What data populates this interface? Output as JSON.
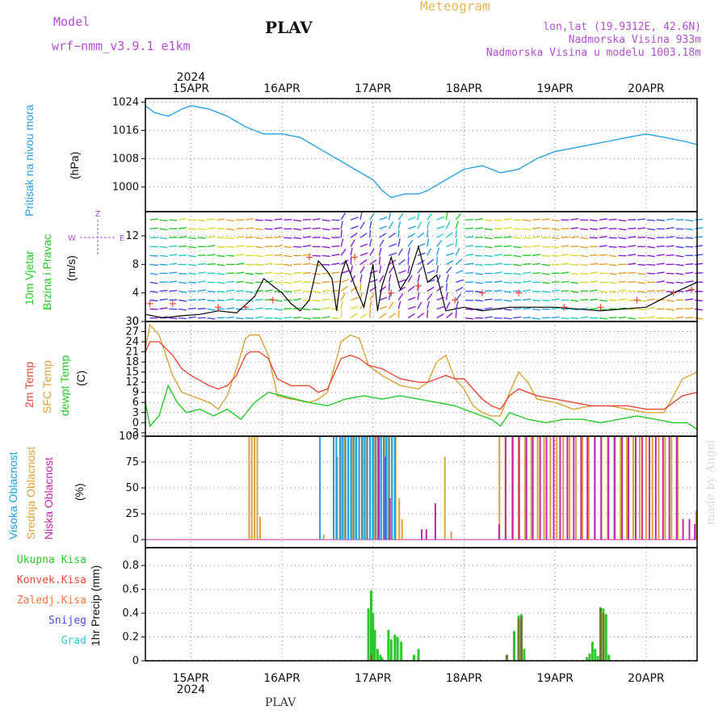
{
  "header": {
    "model_label": "Model",
    "model_name": "wrf−nmm_v3.9.1  e1km",
    "station": "PLAV",
    "title": "Meteogram",
    "lonlat": "lon,lat (19.9312E, 42.6N)",
    "elevation": "Nadmorska Visina 933m",
    "model_elevation": "Nadmorska Visina u modelu 1003.18m"
  },
  "footer": {
    "station": "PLAV",
    "credit": "made by Angel"
  },
  "colors": {
    "pressure": "#2aa0e0",
    "temp": "#e84a3a",
    "sfc_temp": "#d9a23a",
    "dewpt": "#27c727",
    "wind_speed": "#000000",
    "gust": "#e84a3a",
    "high_cloud": "#1f9fe0",
    "mid_cloud": "#d9a23a",
    "low_cloud": "#c228a8",
    "precip_total": "#2ec72e",
    "precip_conv": "#e84a3a",
    "grid": "#888888"
  },
  "chart_data": [
    {
      "type": "line",
      "panel": "pressure",
      "ylabel_title": "Pritisak na nivou mora",
      "ylabel_unit": "(hPa)",
      "xlabel_year": "2024",
      "x_ticks": [
        "15APR",
        "16APR",
        "17APR",
        "18APR",
        "19APR",
        "20APR"
      ],
      "x_unit": "days since 15APR00",
      "ylim": [
        993,
        1025
      ],
      "y_ticks": [
        "1024",
        "1016",
        "1008",
        "1000"
      ],
      "x": [
        -0.5,
        -0.4,
        -0.25,
        -0.1,
        0.0,
        0.2,
        0.4,
        0.6,
        0.8,
        1.0,
        1.2,
        1.4,
        1.6,
        1.8,
        2.0,
        2.1,
        2.2,
        2.35,
        2.5,
        2.6,
        2.8,
        3.0,
        3.2,
        3.4,
        3.6,
        3.8,
        4.0,
        4.2,
        4.4,
        4.6,
        4.8,
        5.0,
        5.2,
        5.4,
        5.56
      ],
      "values": [
        1023,
        1021,
        1020,
        1022,
        1023,
        1022,
        1020,
        1017,
        1015,
        1015,
        1014,
        1011,
        1008,
        1005,
        1002,
        999,
        997,
        998,
        998,
        999,
        1002,
        1005,
        1006,
        1004,
        1005,
        1008,
        1010,
        1011,
        1012,
        1013,
        1014,
        1015,
        1014,
        1013,
        1012
      ]
    },
    {
      "type": "line",
      "panel": "wind",
      "ylabel_title": "10m Vjetar",
      "ylabel_sub": "Brzina i Pravac",
      "ylabel_unit": "(m/s)",
      "compass_labels": [
        "N",
        "E",
        "W",
        "Z"
      ],
      "ylim": [
        0,
        15.4
      ],
      "y_ticks": [
        "0",
        "4",
        "8",
        "12"
      ],
      "x": [
        -0.5,
        -0.3,
        -0.1,
        0.1,
        0.3,
        0.5,
        0.7,
        0.8,
        1.0,
        1.1,
        1.2,
        1.3,
        1.4,
        1.5,
        1.55,
        1.6,
        1.65,
        1.7,
        1.8,
        1.9,
        2.0,
        2.05,
        2.1,
        2.2,
        2.3,
        2.4,
        2.5,
        2.6,
        2.7,
        2.8,
        3.0,
        3.2,
        3.5,
        4.0,
        4.5,
        5.0,
        5.3,
        5.56
      ],
      "values": [
        1,
        0.5,
        0.8,
        1,
        1.5,
        1.2,
        3.5,
        6,
        4,
        2.5,
        1.5,
        3,
        8.5,
        7,
        6,
        1.5,
        6.5,
        8.5,
        5,
        2,
        8,
        1.5,
        5,
        9,
        4.5,
        6.5,
        10.5,
        5.5,
        6.5,
        1.5,
        2,
        1.5,
        2,
        2,
        1.5,
        2,
        4,
        5.5
      ],
      "gust_x": [
        -0.45,
        -0.2,
        0.3,
        0.6,
        0.9,
        1.3,
        1.8,
        2.2,
        2.5,
        2.9,
        3.2,
        3.6,
        4.1,
        4.5,
        4.9,
        5.3,
        5.5
      ],
      "gust_values": [
        2.5,
        2.5,
        2,
        2,
        3,
        9,
        9,
        4,
        5,
        3,
        4,
        4,
        2,
        2,
        3,
        4,
        4.5
      ]
    },
    {
      "type": "line",
      "panel": "temperature",
      "ylabel_2m": "2m Temp",
      "ylabel_sfc": "SFC Temp",
      "ylabel_dew": "dewpt Temp",
      "ylabel_unit": "(C)",
      "ylim": [
        -4,
        30
      ],
      "y_ticks": [
        "30",
        "27",
        "24",
        "21",
        "18",
        "15",
        "12",
        "9",
        "6",
        "3",
        "0",
        "-3"
      ],
      "series": [
        {
          "name": "2m Temp",
          "x": [
            -0.5,
            -0.45,
            -0.35,
            -0.2,
            -0.1,
            0.0,
            0.2,
            0.3,
            0.4,
            0.5,
            0.6,
            0.65,
            0.75,
            0.85,
            0.95,
            1.1,
            1.3,
            1.4,
            1.5,
            1.65,
            1.75,
            1.85,
            1.95,
            2.1,
            2.3,
            2.5,
            2.6,
            2.7,
            2.8,
            2.9,
            3.0,
            3.1,
            3.2,
            3.3,
            3.4,
            3.5,
            3.6,
            3.7,
            3.8,
            4.0,
            4.2,
            4.4,
            4.6,
            4.8,
            5.0,
            5.2,
            5.3,
            5.4,
            5.56
          ],
          "values": [
            21,
            24,
            24,
            20,
            16,
            14,
            11,
            10,
            11,
            14,
            20,
            21,
            21,
            19,
            13,
            11,
            11,
            9,
            10,
            19,
            20,
            19,
            17,
            16,
            13,
            12,
            12,
            13,
            14,
            13,
            13,
            10,
            7,
            5,
            4,
            8,
            10,
            9,
            8,
            7,
            6,
            5,
            5,
            5,
            4,
            4,
            6,
            8,
            9
          ]
        },
        {
          "name": "SFC Temp",
          "x": [
            -0.5,
            -0.45,
            -0.35,
            -0.2,
            -0.1,
            0.0,
            0.2,
            0.3,
            0.4,
            0.5,
            0.6,
            0.65,
            0.75,
            0.85,
            0.95,
            1.1,
            1.3,
            1.4,
            1.5,
            1.65,
            1.75,
            1.85,
            1.95,
            2.1,
            2.3,
            2.5,
            2.6,
            2.7,
            2.8,
            2.9,
            3.0,
            3.1,
            3.2,
            3.3,
            3.4,
            3.5,
            3.6,
            3.7,
            3.8,
            4.0,
            4.2,
            4.4,
            4.6,
            4.8,
            5.0,
            5.2,
            5.3,
            5.4,
            5.56
          ],
          "values": [
            22,
            29,
            26,
            14,
            9,
            8,
            6,
            4,
            8,
            16,
            25,
            26,
            26,
            20,
            8,
            7,
            6,
            7,
            9,
            24,
            26,
            25,
            17,
            14,
            11,
            10,
            12,
            18,
            20,
            13,
            10,
            5,
            3,
            2,
            2,
            9,
            15,
            12,
            7,
            6,
            4,
            5,
            5,
            4,
            3,
            3,
            8,
            13,
            15
          ]
        },
        {
          "name": "dewpt Temp",
          "x": [
            -0.5,
            -0.45,
            -0.35,
            -0.25,
            -0.15,
            -0.05,
            0.1,
            0.25,
            0.4,
            0.55,
            0.7,
            0.85,
            1.0,
            1.15,
            1.3,
            1.5,
            1.7,
            1.9,
            2.1,
            2.3,
            2.5,
            2.7,
            2.9,
            3.1,
            3.3,
            3.4,
            3.5,
            3.7,
            3.9,
            4.1,
            4.3,
            4.5,
            4.7,
            4.9,
            5.1,
            5.3,
            5.45,
            5.56
          ],
          "values": [
            6,
            -1,
            2,
            11,
            6,
            3,
            4,
            2,
            4,
            1,
            6,
            9,
            8,
            7,
            6,
            5,
            7,
            8,
            7,
            8,
            7,
            6,
            5,
            3,
            1,
            -1,
            3,
            1,
            0,
            1,
            1,
            0,
            1,
            2,
            1,
            0,
            0,
            -2
          ]
        }
      ]
    },
    {
      "type": "bar",
      "panel": "clouds",
      "ylabel_high": "Visoka Oblacnost",
      "ylabel_mid": "Srednja Oblacnost",
      "ylabel_low": "Niska Oblacnost",
      "ylabel_unit": "(%)",
      "ylim": [
        0,
        100
      ],
      "y_ticks": [
        "100",
        "75",
        "50",
        "25",
        "0"
      ],
      "high_x": [
        1.4,
        1.55,
        1.58,
        1.62,
        1.65,
        1.68,
        1.71,
        1.74,
        1.77,
        1.8,
        1.83,
        1.86,
        1.89,
        1.92,
        1.95,
        1.98,
        2.01,
        2.04,
        2.07,
        2.1,
        2.13,
        2.16,
        2.19,
        2.22
      ],
      "high_values": [
        100,
        100,
        100,
        100,
        100,
        100,
        100,
        100,
        100,
        100,
        100,
        100,
        100,
        100,
        100,
        100,
        100,
        100,
        100,
        100,
        100,
        100,
        100,
        100
      ],
      "mid_x": [
        0.63,
        0.66,
        0.69,
        0.72,
        0.75,
        1.45,
        1.56,
        1.6,
        1.64,
        1.68,
        1.72,
        1.76,
        1.8,
        1.84,
        1.88,
        1.92,
        1.96,
        2.0,
        2.04,
        2.08,
        2.12,
        2.16,
        2.2,
        2.24,
        2.28,
        2.31,
        2.78,
        2.85,
        3.38,
        3.45,
        3.52,
        3.59,
        3.66,
        3.73,
        3.8,
        3.87,
        3.94,
        4.01,
        4.08,
        4.15,
        4.22,
        4.29,
        4.36,
        4.43,
        4.5,
        4.57,
        4.64,
        4.71,
        4.78,
        4.85,
        4.92,
        4.99,
        5.06,
        5.13,
        5.2,
        5.27,
        5.34,
        5.54
      ],
      "mid_values": [
        100,
        100,
        100,
        100,
        22,
        5,
        100,
        80,
        100,
        100,
        100,
        100,
        100,
        100,
        100,
        100,
        100,
        100,
        100,
        100,
        100,
        100,
        100,
        100,
        40,
        20,
        80,
        8,
        100,
        100,
        100,
        100,
        100,
        100,
        100,
        100,
        100,
        100,
        100,
        100,
        100,
        100,
        100,
        100,
        100,
        100,
        100,
        100,
        100,
        100,
        100,
        100,
        100,
        100,
        100,
        100,
        100,
        28
      ],
      "low_x": [
        2.03,
        2.1,
        2.15,
        2.5,
        2.55,
        2.65,
        3.35,
        3.42,
        3.5,
        3.57,
        3.65,
        3.72,
        3.8,
        3.87,
        3.95,
        4.02,
        4.1,
        4.17,
        4.25,
        4.32,
        4.4,
        4.47,
        4.55,
        4.62,
        4.7,
        4.77,
        4.85,
        4.92,
        5.0,
        5.07,
        5.15,
        5.22,
        5.3,
        5.37,
        5.44,
        5.5
      ],
      "low_values": [
        100,
        80,
        40,
        10,
        10,
        35,
        15,
        100,
        100,
        100,
        100,
        100,
        100,
        100,
        100,
        100,
        100,
        100,
        100,
        100,
        100,
        100,
        100,
        100,
        100,
        100,
        100,
        100,
        100,
        100,
        100,
        100,
        100,
        20,
        20,
        15
      ]
    },
    {
      "type": "bar",
      "panel": "precipitation",
      "legend": [
        "Ukupna Kisa",
        "Konvek.Kisa",
        "Zaledj.Kisa",
        "Snijeg",
        "Grad"
      ],
      "legend_colors": [
        "#2ec72e",
        "#e84a3a",
        "#f07a3a",
        "#4a4ae0",
        "#2ec7c7"
      ],
      "ylabel_unit": "1hr Precip (mm)",
      "ylim": [
        0,
        0.95
      ],
      "y_ticks": [
        "0.8",
        "0.6",
        "0.4",
        "0.2",
        "0"
      ],
      "total_x": [
        1.95,
        1.98,
        2.0,
        2.02,
        2.05,
        2.08,
        2.1,
        2.17,
        2.2,
        2.24,
        2.27,
        2.31,
        2.45,
        2.5,
        3.47,
        3.55,
        3.6,
        3.63,
        3.66,
        4.35,
        4.38,
        4.41,
        4.44,
        4.47,
        4.5,
        4.53,
        4.56,
        4.59
      ],
      "total_values": [
        0.44,
        0.59,
        0.4,
        0.26,
        0.1,
        0.05,
        0.03,
        0.26,
        0.18,
        0.22,
        0.2,
        0.16,
        0.05,
        0.1,
        0.05,
        0.25,
        0.38,
        0.39,
        0.1,
        0.03,
        0.06,
        0.16,
        0.1,
        0.04,
        0.45,
        0.44,
        0.39,
        0.05
      ],
      "conv_x": [
        1.98,
        3.47,
        3.6,
        3.63,
        4.5,
        4.53
      ],
      "conv_values": [
        0.05,
        0.05,
        0.35,
        0.37,
        0.44,
        0.4
      ]
    }
  ]
}
